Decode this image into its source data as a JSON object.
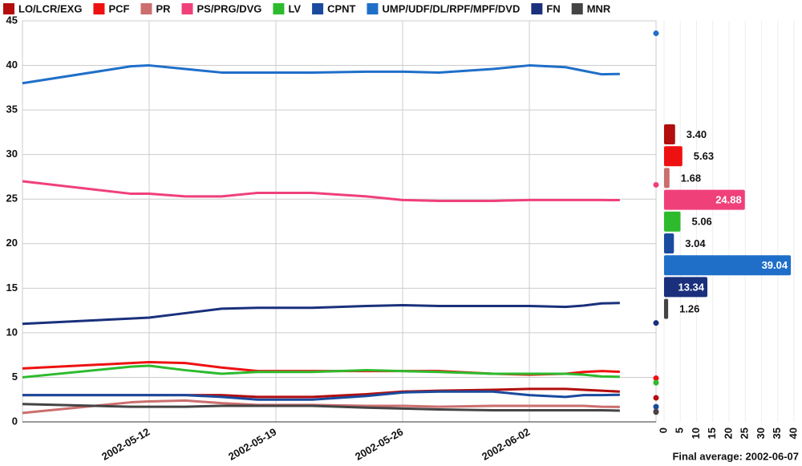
{
  "chart_data": [
    {
      "type": "line",
      "x": [
        "2002-05-05",
        "2002-05-11",
        "2002-05-12",
        "2002-05-14",
        "2002-05-16",
        "2002-05-18",
        "2002-05-21",
        "2002-05-24",
        "2002-05-26",
        "2002-05-28",
        "2002-05-31",
        "2002-06-02",
        "2002-06-04",
        "2002-06-05",
        "2002-06-06",
        "2002-06-07"
      ],
      "result_x": "2002-06-09",
      "xlim": [
        "2002-05-05",
        "2002-06-09"
      ],
      "xticks": [
        "2002-05-12",
        "2002-05-19",
        "2002-05-26",
        "2002-06-02"
      ],
      "ylim": [
        0,
        45
      ],
      "yticks": [
        0,
        5,
        10,
        15,
        20,
        25,
        30,
        35,
        40,
        45
      ],
      "grid": true,
      "series": [
        {
          "name": "LO/LCR/EXG",
          "color": "#b30d0d",
          "values": [
            3,
            3,
            3,
            3,
            3,
            2.8,
            2.8,
            3.1,
            3.4,
            3.5,
            3.6,
            3.7,
            3.7,
            3.6,
            3.5,
            3.4
          ],
          "result": 2.7
        },
        {
          "name": "PCF",
          "color": "#ee1111",
          "values": [
            6,
            6.6,
            6.7,
            6.6,
            6.1,
            5.7,
            5.7,
            5.7,
            5.7,
            5.7,
            5.4,
            5.3,
            5.4,
            5.6,
            5.7,
            5.63
          ],
          "result": 4.9
        },
        {
          "name": "PR",
          "color": "#cc6e6e",
          "values": [
            1,
            2.2,
            2.3,
            2.4,
            2.1,
            1.9,
            1.9,
            1.8,
            1.8,
            1.7,
            1.8,
            1.8,
            1.8,
            1.8,
            1.7,
            1.68
          ],
          "result": 1.2
        },
        {
          "name": "PS/PRG/DVG",
          "color": "#f0407a",
          "values": [
            27,
            25.6,
            25.6,
            25.3,
            25.3,
            25.7,
            25.7,
            25.3,
            24.9,
            24.8,
            24.8,
            24.9,
            24.9,
            24.9,
            24.9,
            24.88
          ],
          "result": 26.6
        },
        {
          "name": "LV",
          "color": "#2dbb2d",
          "values": [
            5,
            6.2,
            6.3,
            5.8,
            5.4,
            5.6,
            5.6,
            5.8,
            5.7,
            5.6,
            5.4,
            5.4,
            5.4,
            5.3,
            5.1,
            5.06
          ],
          "result": 4.4
        },
        {
          "name": "CPNT",
          "color": "#1a4a9e",
          "values": [
            3,
            3,
            3,
            3,
            2.8,
            2.5,
            2.5,
            2.9,
            3.3,
            3.4,
            3.4,
            3.0,
            2.8,
            3.0,
            3.0,
            3.04
          ],
          "result": 1.7
        },
        {
          "name": "UMP/UDF/DL/RPF/MPF/DVD",
          "color": "#1f6fc9",
          "values": [
            38,
            39.9,
            40,
            39.6,
            39.2,
            39.2,
            39.2,
            39.3,
            39.3,
            39.2,
            39.6,
            40,
            39.8,
            39.4,
            39.0,
            39.04
          ],
          "result": 43.6
        },
        {
          "name": "FN",
          "color": "#1a307c",
          "values": [
            11,
            11.6,
            11.7,
            12.2,
            12.7,
            12.8,
            12.8,
            13,
            13.1,
            13,
            13,
            13,
            12.9,
            13.05,
            13.3,
            13.34
          ],
          "result": 11.1
        },
        {
          "name": "MNR",
          "color": "#444444",
          "values": [
            2,
            1.7,
            1.7,
            1.7,
            1.8,
            1.8,
            1.8,
            1.6,
            1.5,
            1.4,
            1.3,
            1.3,
            1.3,
            1.3,
            1.3,
            1.26
          ],
          "result": 1.1
        }
      ]
    },
    {
      "type": "hbar",
      "title": "Final average: 2002-06-07",
      "values": [
        3.4,
        5.63,
        1.68,
        24.88,
        5.06,
        3.04,
        39.04,
        13.34,
        1.26
      ],
      "value_labels": [
        "3.40",
        "5.63",
        "1.68",
        "24.88",
        "5.06",
        "3.04",
        "39.04",
        "13.34",
        "1.26"
      ],
      "colors": [
        "#b30d0d",
        "#ee1111",
        "#cc6e6e",
        "#f0407a",
        "#2dbb2d",
        "#1a4a9e",
        "#1f6fc9",
        "#1a307c",
        "#444444"
      ],
      "xlim": [
        0,
        40
      ],
      "xticks": [
        0,
        5,
        10,
        15,
        20,
        25,
        30,
        35,
        40
      ]
    }
  ]
}
